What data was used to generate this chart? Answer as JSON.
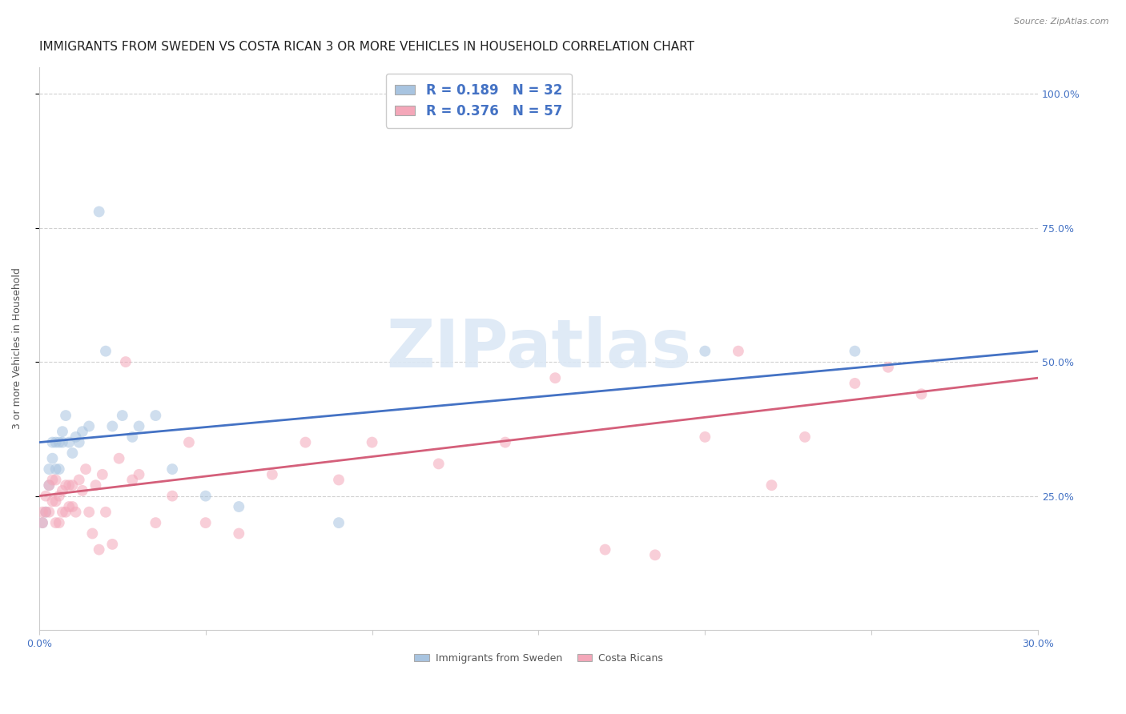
{
  "title": "IMMIGRANTS FROM SWEDEN VS COSTA RICAN 3 OR MORE VEHICLES IN HOUSEHOLD CORRELATION CHART",
  "source": "Source: ZipAtlas.com",
  "ylabel": "3 or more Vehicles in Household",
  "legend1_text": "R = 0.189   N = 32",
  "legend2_text": "R = 0.376   N = 57",
  "blue_color": "#a8c4e0",
  "pink_color": "#f4a7b9",
  "blue_line_color": "#4472c4",
  "pink_line_color": "#d45f7a",
  "label_color": "#4472c4",
  "sweden_x": [
    0.001,
    0.002,
    0.003,
    0.003,
    0.004,
    0.004,
    0.005,
    0.005,
    0.006,
    0.006,
    0.007,
    0.007,
    0.008,
    0.009,
    0.01,
    0.011,
    0.012,
    0.013,
    0.015,
    0.018,
    0.02,
    0.022,
    0.025,
    0.028,
    0.03,
    0.035,
    0.04,
    0.05,
    0.06,
    0.09,
    0.2,
    0.245
  ],
  "sweden_y": [
    0.2,
    0.22,
    0.27,
    0.3,
    0.32,
    0.35,
    0.3,
    0.35,
    0.3,
    0.35,
    0.35,
    0.37,
    0.4,
    0.35,
    0.33,
    0.36,
    0.35,
    0.37,
    0.38,
    0.78,
    0.52,
    0.38,
    0.4,
    0.36,
    0.38,
    0.4,
    0.3,
    0.25,
    0.23,
    0.2,
    0.52,
    0.52
  ],
  "costarican_x": [
    0.001,
    0.001,
    0.002,
    0.002,
    0.003,
    0.003,
    0.004,
    0.004,
    0.005,
    0.005,
    0.005,
    0.006,
    0.006,
    0.007,
    0.007,
    0.008,
    0.008,
    0.009,
    0.009,
    0.01,
    0.01,
    0.011,
    0.012,
    0.013,
    0.014,
    0.015,
    0.016,
    0.017,
    0.018,
    0.019,
    0.02,
    0.022,
    0.024,
    0.026,
    0.028,
    0.03,
    0.035,
    0.04,
    0.045,
    0.05,
    0.06,
    0.07,
    0.08,
    0.09,
    0.1,
    0.12,
    0.14,
    0.155,
    0.17,
    0.185,
    0.2,
    0.21,
    0.22,
    0.23,
    0.245,
    0.255,
    0.265
  ],
  "costarican_y": [
    0.2,
    0.22,
    0.22,
    0.25,
    0.22,
    0.27,
    0.24,
    0.28,
    0.2,
    0.24,
    0.28,
    0.2,
    0.25,
    0.22,
    0.26,
    0.22,
    0.27,
    0.23,
    0.27,
    0.23,
    0.27,
    0.22,
    0.28,
    0.26,
    0.3,
    0.22,
    0.18,
    0.27,
    0.15,
    0.29,
    0.22,
    0.16,
    0.32,
    0.5,
    0.28,
    0.29,
    0.2,
    0.25,
    0.35,
    0.2,
    0.18,
    0.29,
    0.35,
    0.28,
    0.35,
    0.31,
    0.35,
    0.47,
    0.15,
    0.14,
    0.36,
    0.52,
    0.27,
    0.36,
    0.46,
    0.49,
    0.44
  ],
  "xlim": [
    0.0,
    0.3
  ],
  "ylim": [
    0.0,
    1.05
  ],
  "ytick_vals": [
    0.25,
    0.5,
    0.75,
    1.0
  ],
  "ytick_labels": [
    "25.0%",
    "50.0%",
    "75.0%",
    "100.0%"
  ],
  "xtick_vals": [
    0.0,
    0.05,
    0.1,
    0.15,
    0.2,
    0.25,
    0.3
  ],
  "xtick_labels": [
    "0.0%",
    "",
    "",
    "",
    "",
    "",
    "30.0%"
  ],
  "background_color": "#ffffff",
  "grid_color": "#d0d0d0",
  "marker_size": 100,
  "marker_alpha": 0.55,
  "title_fontsize": 11,
  "axis_label_fontsize": 9,
  "tick_fontsize": 9,
  "watermark_text": "ZIPatlas",
  "watermark_color": "#dce8f5",
  "watermark_alpha": 0.9,
  "watermark_fontsize": 60
}
